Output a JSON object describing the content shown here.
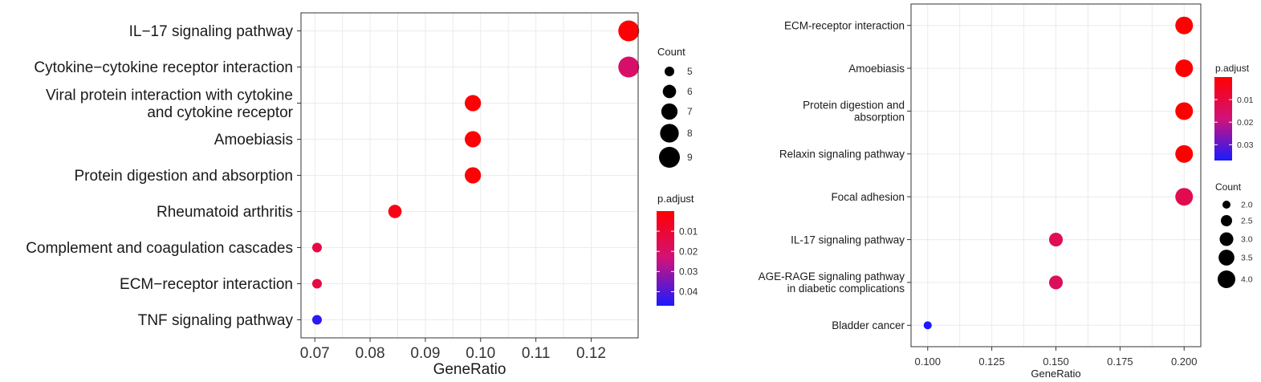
{
  "chart_data": [
    {
      "type": "scatter",
      "xlabel": "GeneRatio",
      "ylabel": "",
      "xlim": [
        0.0675,
        0.1285
      ],
      "xticks": [
        0.07,
        0.08,
        0.09,
        0.1,
        0.11,
        0.12
      ],
      "xtick_labels": [
        "0.07",
        "0.08",
        "0.09",
        "0.10",
        "0.11",
        "0.12"
      ],
      "grid": true,
      "categories": [
        [
          "IL−17 signaling pathway"
        ],
        [
          "Cytokine−cytokine receptor interaction"
        ],
        [
          "Viral protein interaction with cytokine",
          "and cytokine receptor"
        ],
        [
          "Amoebiasis"
        ],
        [
          "Protein digestion and absorption"
        ],
        [
          "Rheumatoid arthritis"
        ],
        [
          "Complement and coagulation cascades"
        ],
        [
          "ECM−receptor interaction"
        ],
        [
          "TNF signaling pathway"
        ]
      ],
      "points": [
        {
          "x": 0.1268,
          "count": 9,
          "padj": 0.0005
        },
        {
          "x": 0.1268,
          "count": 9,
          "padj": 0.02
        },
        {
          "x": 0.0986,
          "count": 7,
          "padj": 0.001
        },
        {
          "x": 0.0986,
          "count": 7,
          "padj": 0.001
        },
        {
          "x": 0.0986,
          "count": 7,
          "padj": 0.001
        },
        {
          "x": 0.0845,
          "count": 6,
          "padj": 0.004
        },
        {
          "x": 0.0704,
          "count": 5,
          "padj": 0.013
        },
        {
          "x": 0.0704,
          "count": 5,
          "padj": 0.013
        },
        {
          "x": 0.0704,
          "count": 5,
          "padj": 0.045
        }
      ],
      "size_legend": {
        "title": "Count",
        "values": [
          5,
          6,
          7,
          8,
          9
        ],
        "labels": [
          "5",
          "6",
          "7",
          "8",
          "9"
        ],
        "placement": "right"
      },
      "color_legend": {
        "title": "p.adjust",
        "range": [
          0.0,
          0.047
        ],
        "ticks": [
          0.01,
          0.02,
          0.03,
          0.04
        ],
        "labels": [
          "0.01",
          "0.02",
          "0.03",
          "0.04"
        ],
        "low_color": "#ff0000",
        "high_color": "#0000ff",
        "placement": "right"
      }
    },
    {
      "type": "scatter",
      "xlabel": "GeneRatio",
      "ylabel": "",
      "xlim": [
        0.0935,
        0.2065
      ],
      "xticks": [
        0.1,
        0.125,
        0.15,
        0.175,
        0.2
      ],
      "xtick_labels": [
        "0.100",
        "0.125",
        "0.150",
        "0.175",
        "0.200"
      ],
      "grid": true,
      "categories": [
        [
          "ECM-receptor interaction"
        ],
        [
          "Amoebiasis"
        ],
        [
          "Protein digestion and",
          "absorption"
        ],
        [
          "Relaxin signaling pathway"
        ],
        [
          "Focal adhesion"
        ],
        [
          "IL-17 signaling pathway"
        ],
        [
          "AGE-RAGE signaling pathway",
          "in diabetic complications"
        ],
        [
          "Bladder cancer"
        ]
      ],
      "points": [
        {
          "x": 0.2,
          "count": 4,
          "padj": 0.0
        },
        {
          "x": 0.2,
          "count": 4,
          "padj": 0.0
        },
        {
          "x": 0.2,
          "count": 4,
          "padj": 0.0
        },
        {
          "x": 0.2,
          "count": 4,
          "padj": 0.0
        },
        {
          "x": 0.2,
          "count": 4,
          "padj": 0.012
        },
        {
          "x": 0.15,
          "count": 3,
          "padj": 0.013
        },
        {
          "x": 0.15,
          "count": 3,
          "padj": 0.014
        },
        {
          "x": 0.1,
          "count": 2,
          "padj": 0.037
        }
      ],
      "color_legend": {
        "title": "p.adjust",
        "range": [
          0.0,
          0.037
        ],
        "ticks": [
          0.01,
          0.02,
          0.03
        ],
        "labels": [
          "0.01",
          "0.02",
          "0.03"
        ],
        "low_color": "#ff0000",
        "high_color": "#0000ff",
        "placement": "right"
      },
      "size_legend": {
        "title": "Count",
        "values": [
          2.0,
          2.5,
          3.0,
          3.5,
          4.0
        ],
        "labels": [
          "2.0",
          "2.5",
          "3.0",
          "3.5",
          "4.0"
        ],
        "placement": "right"
      }
    }
  ]
}
